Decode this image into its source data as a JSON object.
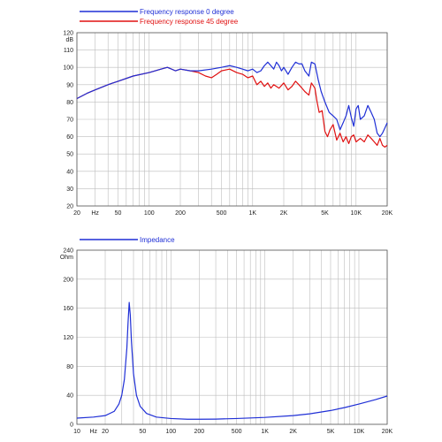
{
  "chart_data": [
    {
      "type": "line",
      "x_scale": "log",
      "xlim": [
        20,
        20000
      ],
      "ylim": [
        20,
        120
      ],
      "ylabel": "dB",
      "grid": true,
      "legend_placement": "top-left",
      "x_tick_labels": [
        {
          "value": 20,
          "label": "20"
        },
        {
          "value": 30,
          "label": "Hz"
        },
        {
          "value": 50,
          "label": "50"
        },
        {
          "value": 100,
          "label": "100"
        },
        {
          "value": 200,
          "label": "200"
        },
        {
          "value": 500,
          "label": "500"
        },
        {
          "value": 1000,
          "label": "1K"
        },
        {
          "value": 2000,
          "label": "2K"
        },
        {
          "value": 5000,
          "label": "5K"
        },
        {
          "value": 10000,
          "label": "10K"
        },
        {
          "value": 20000,
          "label": "20K"
        }
      ],
      "y_ticks": [
        20,
        30,
        40,
        50,
        60,
        70,
        80,
        90,
        100,
        110,
        120
      ],
      "series": [
        {
          "name": "Frequency response 0 degree",
          "color": "#1f2fd6",
          "points": [
            [
              20,
              82
            ],
            [
              25,
              85
            ],
            [
              30,
              87
            ],
            [
              40,
              90
            ],
            [
              50,
              92
            ],
            [
              70,
              95
            ],
            [
              100,
              97
            ],
            [
              130,
              99
            ],
            [
              150,
              100
            ],
            [
              180,
              98
            ],
            [
              200,
              99
            ],
            [
              250,
              98
            ],
            [
              300,
              98
            ],
            [
              400,
              99
            ],
            [
              500,
              100
            ],
            [
              600,
              101
            ],
            [
              700,
              100
            ],
            [
              800,
              99
            ],
            [
              900,
              98
            ],
            [
              1000,
              99
            ],
            [
              1100,
              97
            ],
            [
              1200,
              98
            ],
            [
              1300,
              101
            ],
            [
              1400,
              103
            ],
            [
              1500,
              101
            ],
            [
              1600,
              99
            ],
            [
              1700,
              103
            ],
            [
              1800,
              101
            ],
            [
              1900,
              98
            ],
            [
              2000,
              100
            ],
            [
              2200,
              96
            ],
            [
              2400,
              100
            ],
            [
              2600,
              103
            ],
            [
              2800,
              102
            ],
            [
              3000,
              102
            ],
            [
              3200,
              98
            ],
            [
              3500,
              95
            ],
            [
              3700,
              103
            ],
            [
              4000,
              102
            ],
            [
              4300,
              93
            ],
            [
              4600,
              86
            ],
            [
              5000,
              80
            ],
            [
              5500,
              74
            ],
            [
              6000,
              72
            ],
            [
              6500,
              70
            ],
            [
              7000,
              64
            ],
            [
              7500,
              68
            ],
            [
              8000,
              72
            ],
            [
              8500,
              78
            ],
            [
              9000,
              71
            ],
            [
              9500,
              66
            ],
            [
              10000,
              76
            ],
            [
              10500,
              78
            ],
            [
              11000,
              70
            ],
            [
              12000,
              72
            ],
            [
              13000,
              78
            ],
            [
              14000,
              74
            ],
            [
              15000,
              70
            ],
            [
              16000,
              62
            ],
            [
              17000,
              60
            ],
            [
              18000,
              62
            ],
            [
              19000,
              65
            ],
            [
              20000,
              68
            ]
          ]
        },
        {
          "name": "Frequency response 45 degree",
          "color": "#e01010",
          "points": [
            [
              20,
              82
            ],
            [
              25,
              85
            ],
            [
              30,
              87
            ],
            [
              40,
              90
            ],
            [
              50,
              92
            ],
            [
              70,
              95
            ],
            [
              100,
              97
            ],
            [
              130,
              99
            ],
            [
              150,
              100
            ],
            [
              180,
              98
            ],
            [
              200,
              99
            ],
            [
              250,
              98
            ],
            [
              300,
              97
            ],
            [
              350,
              95
            ],
            [
              400,
              94
            ],
            [
              450,
              96
            ],
            [
              500,
              98
            ],
            [
              600,
              99
            ],
            [
              700,
              97
            ],
            [
              800,
              96
            ],
            [
              900,
              94
            ],
            [
              1000,
              95
            ],
            [
              1100,
              90
            ],
            [
              1200,
              92
            ],
            [
              1300,
              89
            ],
            [
              1400,
              91
            ],
            [
              1500,
              88
            ],
            [
              1600,
              90
            ],
            [
              1800,
              88
            ],
            [
              2000,
              91
            ],
            [
              2200,
              87
            ],
            [
              2400,
              89
            ],
            [
              2600,
              92
            ],
            [
              2800,
              90
            ],
            [
              3000,
              88
            ],
            [
              3200,
              86
            ],
            [
              3500,
              84
            ],
            [
              3700,
              91
            ],
            [
              4000,
              88
            ],
            [
              4200,
              80
            ],
            [
              4400,
              74
            ],
            [
              4700,
              75
            ],
            [
              5000,
              63
            ],
            [
              5300,
              60
            ],
            [
              5600,
              64
            ],
            [
              6000,
              67
            ],
            [
              6500,
              58
            ],
            [
              7000,
              62
            ],
            [
              7500,
              57
            ],
            [
              8000,
              60
            ],
            [
              8500,
              56
            ],
            [
              9000,
              60
            ],
            [
              9500,
              61
            ],
            [
              10000,
              57
            ],
            [
              11000,
              59
            ],
            [
              12000,
              57
            ],
            [
              13000,
              61
            ],
            [
              14000,
              59
            ],
            [
              15000,
              57
            ],
            [
              16000,
              55
            ],
            [
              17000,
              59
            ],
            [
              18000,
              55
            ],
            [
              19000,
              54
            ],
            [
              20000,
              55
            ]
          ]
        }
      ]
    },
    {
      "type": "line",
      "x_scale": "log",
      "xlim": [
        10,
        20000
      ],
      "ylim": [
        0,
        240
      ],
      "ylabel": "Ohm",
      "grid": true,
      "legend_placement": "top-left",
      "x_tick_labels": [
        {
          "value": 10,
          "label": "10"
        },
        {
          "value": 15,
          "label": "Hz"
        },
        {
          "value": 20,
          "label": "20"
        },
        {
          "value": 50,
          "label": "50"
        },
        {
          "value": 100,
          "label": "100"
        },
        {
          "value": 200,
          "label": "200"
        },
        {
          "value": 500,
          "label": "500"
        },
        {
          "value": 1000,
          "label": "1K"
        },
        {
          "value": 2000,
          "label": "2K"
        },
        {
          "value": 5000,
          "label": "5K"
        },
        {
          "value": 10000,
          "label": "10K"
        },
        {
          "value": 20000,
          "label": "20K"
        }
      ],
      "y_ticks": [
        0,
        40,
        80,
        120,
        160,
        200,
        240
      ],
      "series": [
        {
          "name": "Impedance",
          "color": "#1f2fd6",
          "points": [
            [
              10,
              8.5
            ],
            [
              15,
              10
            ],
            [
              20,
              12
            ],
            [
              25,
              18
            ],
            [
              28,
              28
            ],
            [
              30,
              40
            ],
            [
              32,
              62
            ],
            [
              34,
              105
            ],
            [
              35,
              140
            ],
            [
              36,
              168
            ],
            [
              37,
              150
            ],
            [
              38,
              115
            ],
            [
              40,
              70
            ],
            [
              43,
              40
            ],
            [
              47,
              25
            ],
            [
              55,
              15
            ],
            [
              70,
              10
            ],
            [
              100,
              8
            ],
            [
              150,
              7
            ],
            [
              200,
              7
            ],
            [
              300,
              7.2
            ],
            [
              500,
              8
            ],
            [
              1000,
              9.5
            ],
            [
              2000,
              12
            ],
            [
              3000,
              14.5
            ],
            [
              5000,
              19
            ],
            [
              7000,
              23
            ],
            [
              10000,
              28
            ],
            [
              15000,
              34
            ],
            [
              20000,
              39
            ]
          ]
        }
      ]
    }
  ]
}
